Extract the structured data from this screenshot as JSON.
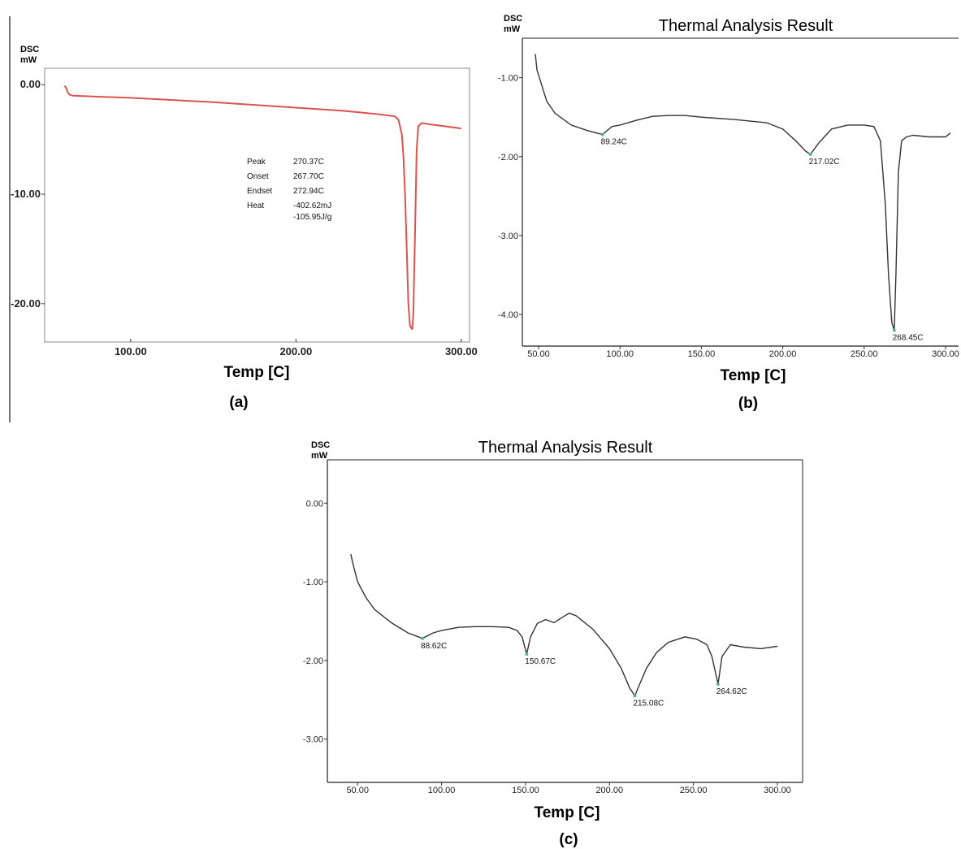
{
  "chart_data": [
    {
      "panel": "(a)",
      "type": "line",
      "title": "",
      "xlabel": "Temp  [C]",
      "ylabel": [
        "DSC",
        "mW"
      ],
      "xlim": [
        48,
        305
      ],
      "ylim": [
        -23.5,
        1.5
      ],
      "xticks": [
        100,
        200,
        300
      ],
      "xtick_labels": [
        "100.00",
        "200.00",
        "300.00"
      ],
      "yticks": [
        0,
        -10,
        -20
      ],
      "ytick_labels": [
        "0.00",
        "-10.00",
        "-20.00"
      ],
      "color": "#d9534f",
      "series": [
        {
          "x": [
            60,
            61,
            62,
            63,
            65,
            80,
            100,
            150,
            200,
            230,
            250,
            260,
            262,
            264,
            265,
            266,
            267,
            268,
            269,
            270,
            270.37,
            271,
            272,
            273,
            274,
            276,
            280,
            290,
            300
          ],
          "y": [
            -0.1,
            -0.3,
            -0.7,
            -0.9,
            -1.0,
            -1.1,
            -1.2,
            -1.6,
            -2.1,
            -2.4,
            -2.7,
            -2.9,
            -3.2,
            -4.5,
            -6.5,
            -10,
            -15,
            -20,
            -22,
            -22.3,
            -22.3,
            -21,
            -14,
            -6,
            -3.8,
            -3.5,
            -3.6,
            -3.8,
            -4.0
          ]
        }
      ],
      "annotations": [
        {
          "label": "Peak",
          "value": "270.37C"
        },
        {
          "label": "Onset",
          "value": "267.70C"
        },
        {
          "label": "Endset",
          "value": "272.94C"
        },
        {
          "label": "Heat",
          "value": "-402.62mJ"
        },
        {
          "label": "",
          "value": "-105.95J/g"
        }
      ]
    },
    {
      "panel": "(b)",
      "type": "line",
      "title": "Thermal Analysis Result",
      "xlabel": "Temp  [C]",
      "ylabel": [
        "DSC",
        "mW"
      ],
      "xlim": [
        40,
        308
      ],
      "ylim": [
        -4.4,
        -0.5
      ],
      "xticks": [
        50,
        100,
        150,
        200,
        250,
        300
      ],
      "xtick_labels": [
        "50.00",
        "100.00",
        "150.00",
        "200.00",
        "250.00",
        "300.00"
      ],
      "yticks": [
        -1,
        -2,
        -3,
        -4
      ],
      "ytick_labels": [
        "-1.00",
        "-2.00",
        "-3.00",
        "-4.00"
      ],
      "color": "#333333",
      "series": [
        {
          "x": [
            48,
            49,
            52,
            55,
            60,
            70,
            80,
            89.24,
            95,
            100,
            110,
            120,
            130,
            140,
            150,
            170,
            190,
            200,
            208,
            214,
            217.02,
            222,
            230,
            240,
            250,
            256,
            260,
            263,
            265,
            267,
            268.45,
            269.5,
            271,
            273,
            276,
            280,
            290,
            300,
            303
          ],
          "y": [
            -0.7,
            -0.9,
            -1.1,
            -1.3,
            -1.45,
            -1.6,
            -1.67,
            -1.72,
            -1.62,
            -1.6,
            -1.54,
            -1.49,
            -1.48,
            -1.48,
            -1.5,
            -1.53,
            -1.57,
            -1.65,
            -1.8,
            -1.93,
            -1.97,
            -1.83,
            -1.65,
            -1.6,
            -1.6,
            -1.62,
            -1.8,
            -2.6,
            -3.5,
            -4.1,
            -4.2,
            -3.5,
            -2.2,
            -1.8,
            -1.75,
            -1.73,
            -1.75,
            -1.75,
            -1.7
          ]
        }
      ],
      "peaks": [
        {
          "x": 89.24,
          "y": -1.72,
          "label": "89.24C"
        },
        {
          "x": 217.02,
          "y": -1.97,
          "label": "217.02C"
        },
        {
          "x": 268.45,
          "y": -4.2,
          "label": "268.45C"
        }
      ]
    },
    {
      "panel": "(c)",
      "type": "line",
      "title": "Thermal Analysis Result",
      "xlabel": "Temp  [C]",
      "ylabel": [
        "DSC",
        "mW"
      ],
      "xlim": [
        32,
        315
      ],
      "ylim": [
        -3.55,
        0.55
      ],
      "xticks": [
        50,
        100,
        150,
        200,
        250,
        300
      ],
      "xtick_labels": [
        "50.00",
        "100.00",
        "150.00",
        "200.00",
        "250.00",
        "300.00"
      ],
      "yticks": [
        0,
        -1,
        -2,
        -3
      ],
      "ytick_labels": [
        "0.00",
        "-1.00",
        "-2.00",
        "-3.00"
      ],
      "color": "#333333",
      "series": [
        {
          "x": [
            46,
            47,
            50,
            55,
            60,
            70,
            80,
            88.62,
            95,
            100,
            110,
            120,
            130,
            140,
            145,
            148,
            150.67,
            153,
            157,
            162,
            167,
            172,
            176,
            180,
            190,
            200,
            207,
            212,
            215.08,
            218,
            222,
            228,
            235,
            245,
            252,
            258,
            261,
            264.62,
            267,
            272,
            280,
            290,
            300
          ],
          "y": [
            -0.65,
            -0.75,
            -1.0,
            -1.2,
            -1.35,
            -1.52,
            -1.65,
            -1.72,
            -1.65,
            -1.62,
            -1.58,
            -1.57,
            -1.57,
            -1.58,
            -1.62,
            -1.7,
            -1.92,
            -1.7,
            -1.53,
            -1.48,
            -1.52,
            -1.45,
            -1.4,
            -1.43,
            -1.6,
            -1.85,
            -2.1,
            -2.35,
            -2.45,
            -2.3,
            -2.1,
            -1.9,
            -1.77,
            -1.7,
            -1.73,
            -1.8,
            -1.95,
            -2.3,
            -1.95,
            -1.8,
            -1.83,
            -1.85,
            -1.82
          ]
        }
      ],
      "peaks": [
        {
          "x": 88.62,
          "y": -1.72,
          "label": "88.62C"
        },
        {
          "x": 150.67,
          "y": -1.92,
          "label": "150.67C"
        },
        {
          "x": 215.08,
          "y": -2.45,
          "label": "215.08C"
        },
        {
          "x": 264.62,
          "y": -2.3,
          "label": "264.62C"
        }
      ]
    }
  ]
}
